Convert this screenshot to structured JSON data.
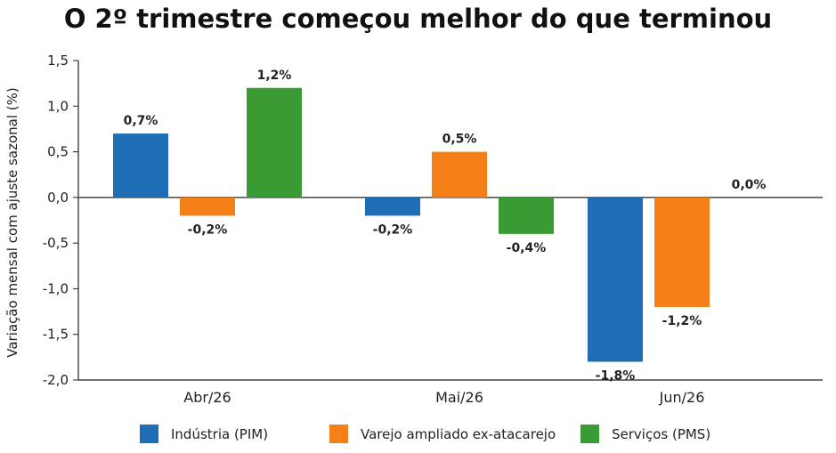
{
  "chart_data": {
    "type": "bar",
    "title": "O 2º trimestre começou melhor do que terminou",
    "ylabel": "Variação mensal com ajuste sazonal (%)",
    "xlabel": "",
    "ylim": [
      -2.0,
      1.5
    ],
    "yticks": [
      "1,5",
      "1,0",
      "0,5",
      "0,0",
      "-0,5",
      "-1,0",
      "-1,5",
      "-2,0"
    ],
    "ytick_values": [
      1.5,
      1.0,
      0.5,
      0.0,
      -0.5,
      -1.0,
      -1.5,
      -2.0
    ],
    "categories": [
      "Abr/26",
      "Mai/26",
      "Jun/26"
    ],
    "series": [
      {
        "name": "Indústria (PIM)",
        "color": "#1f6db5",
        "values": [
          0.7,
          -0.2,
          -1.8
        ],
        "labels": [
          "0,7%",
          "-0,2%",
          "-1,8%"
        ]
      },
      {
        "name": "Varejo ampliado ex-atacarejo",
        "color": "#f57f17",
        "values": [
          -0.2,
          0.5,
          -1.2
        ],
        "labels": [
          "-0,2%",
          "0,5%",
          "-1,2%"
        ]
      },
      {
        "name": "Serviços (PMS)",
        "color": "#3a9b35",
        "values": [
          1.2,
          -0.4,
          0.0
        ],
        "labels": [
          "1,2%",
          "-0,4%",
          "0,0%"
        ]
      }
    ],
    "grid": false,
    "legend_position": "bottom"
  }
}
